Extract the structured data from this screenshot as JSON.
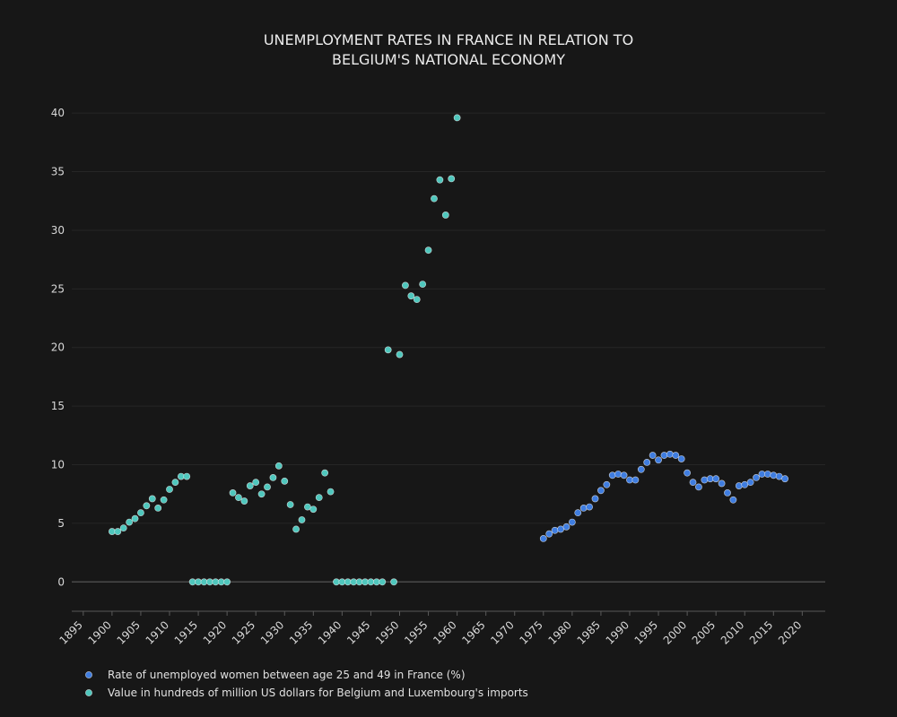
{
  "chart_data": {
    "type": "scatter",
    "title_lines": [
      "UNEMPLOYMENT RATES IN FRANCE IN RELATION TO",
      "BELGIUM'S NATIONAL ECONOMY"
    ],
    "xlabel": "",
    "ylabel": "",
    "xlim": [
      1893,
      2024
    ],
    "ylim": [
      -2.5,
      42
    ],
    "x_ticks": [
      1895,
      1900,
      1905,
      1910,
      1915,
      1920,
      1925,
      1930,
      1935,
      1940,
      1945,
      1950,
      1955,
      1960,
      1965,
      1970,
      1975,
      1980,
      1985,
      1990,
      1995,
      2000,
      2005,
      2010,
      2015,
      2020
    ],
    "y_ticks": [
      0,
      5,
      10,
      15,
      20,
      25,
      30,
      35,
      40
    ],
    "grid": true,
    "legend_position": "bottom-left",
    "series": [
      {
        "name": "Rate of unemployed women between age 25 and 49 in France (%)",
        "color": "#3f7de0",
        "points": [
          [
            1975,
            3.7
          ],
          [
            1976,
            4.1
          ],
          [
            1977,
            4.4
          ],
          [
            1978,
            4.5
          ],
          [
            1979,
            4.7
          ],
          [
            1980,
            5.1
          ],
          [
            1981,
            5.9
          ],
          [
            1982,
            6.3
          ],
          [
            1983,
            6.4
          ],
          [
            1984,
            7.1
          ],
          [
            1985,
            7.8
          ],
          [
            1986,
            8.3
          ],
          [
            1987,
            9.1
          ],
          [
            1988,
            9.2
          ],
          [
            1989,
            9.1
          ],
          [
            1990,
            8.7
          ],
          [
            1991,
            8.7
          ],
          [
            1992,
            9.6
          ],
          [
            1993,
            10.2
          ],
          [
            1994,
            10.8
          ],
          [
            1995,
            10.4
          ],
          [
            1996,
            10.8
          ],
          [
            1997,
            10.9
          ],
          [
            1998,
            10.8
          ],
          [
            1999,
            10.5
          ],
          [
            2000,
            9.3
          ],
          [
            2001,
            8.5
          ],
          [
            2002,
            8.1
          ],
          [
            2003,
            8.7
          ],
          [
            2004,
            8.8
          ],
          [
            2005,
            8.8
          ],
          [
            2006,
            8.4
          ],
          [
            2007,
            7.6
          ],
          [
            2008,
            7.0
          ],
          [
            2009,
            8.2
          ],
          [
            2010,
            8.3
          ],
          [
            2011,
            8.5
          ],
          [
            2012,
            8.9
          ],
          [
            2013,
            9.2
          ],
          [
            2014,
            9.2
          ],
          [
            2015,
            9.1
          ],
          [
            2016,
            9.0
          ],
          [
            2017,
            8.8
          ]
        ]
      },
      {
        "name": "Value in hundreds of million US dollars for Belgium and Luxembourg's imports",
        "color": "#4fc7bd",
        "points": [
          [
            1900,
            4.3
          ],
          [
            1901,
            4.3
          ],
          [
            1902,
            4.6
          ],
          [
            1903,
            5.1
          ],
          [
            1904,
            5.4
          ],
          [
            1905,
            5.9
          ],
          [
            1906,
            6.5
          ],
          [
            1907,
            7.1
          ],
          [
            1908,
            6.3
          ],
          [
            1909,
            7.0
          ],
          [
            1910,
            7.9
          ],
          [
            1911,
            8.5
          ],
          [
            1912,
            9.0
          ],
          [
            1913,
            9.0
          ],
          [
            1914,
            0
          ],
          [
            1915,
            0
          ],
          [
            1916,
            0
          ],
          [
            1917,
            0
          ],
          [
            1918,
            0
          ],
          [
            1919,
            0
          ],
          [
            1920,
            0
          ],
          [
            1921,
            7.6
          ],
          [
            1922,
            7.2
          ],
          [
            1923,
            6.9
          ],
          [
            1924,
            8.2
          ],
          [
            1925,
            8.5
          ],
          [
            1926,
            7.5
          ],
          [
            1927,
            8.1
          ],
          [
            1928,
            8.9
          ],
          [
            1929,
            9.9
          ],
          [
            1930,
            8.6
          ],
          [
            1931,
            6.6
          ],
          [
            1932,
            4.5
          ],
          [
            1933,
            5.3
          ],
          [
            1934,
            6.4
          ],
          [
            1935,
            6.2
          ],
          [
            1936,
            7.2
          ],
          [
            1937,
            9.3
          ],
          [
            1938,
            7.7
          ],
          [
            1939,
            0
          ],
          [
            1940,
            0
          ],
          [
            1941,
            0
          ],
          [
            1942,
            0
          ],
          [
            1943,
            0
          ],
          [
            1944,
            0
          ],
          [
            1945,
            0
          ],
          [
            1946,
            0
          ],
          [
            1947,
            0
          ],
          [
            1948,
            19.8
          ],
          [
            1949,
            0
          ],
          [
            1950,
            19.4
          ],
          [
            1951,
            25.3
          ],
          [
            1952,
            24.4
          ],
          [
            1953,
            24.1
          ],
          [
            1954,
            25.4
          ],
          [
            1955,
            28.3
          ],
          [
            1956,
            32.7
          ],
          [
            1957,
            34.3
          ],
          [
            1958,
            31.3
          ],
          [
            1959,
            34.4
          ],
          [
            1960,
            39.6
          ]
        ]
      }
    ]
  }
}
